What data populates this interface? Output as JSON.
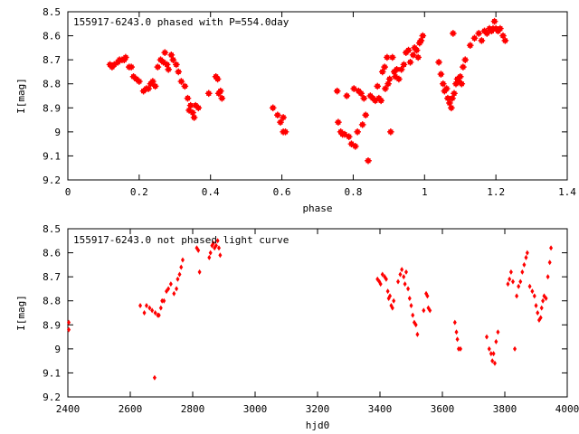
{
  "chart_data": [
    {
      "type": "scatter",
      "title": "155917-6243.0 phased with P=554.0day",
      "xlabel": "phase",
      "ylabel": "I[mag]",
      "xlim": [
        0,
        1.4
      ],
      "ylim": [
        9.2,
        8.5
      ],
      "y_inverted": true,
      "x_ticks": [
        "0",
        "0.2",
        "0.4",
        "0.6",
        "0.8",
        "1",
        "1.2",
        "1.4"
      ],
      "y_ticks": [
        "8.5",
        "8.6",
        "8.7",
        "8.8",
        "8.9",
        "9",
        "9.1",
        "9.2"
      ],
      "marker": "filled-star",
      "color": "#ff0000",
      "grid": false,
      "points": [
        [
          0.118,
          8.72
        ],
        [
          0.124,
          8.73
        ],
        [
          0.13,
          8.72
        ],
        [
          0.14,
          8.71
        ],
        [
          0.145,
          8.7
        ],
        [
          0.152,
          8.7
        ],
        [
          0.158,
          8.7
        ],
        [
          0.162,
          8.69
        ],
        [
          0.172,
          8.73
        ],
        [
          0.178,
          8.73
        ],
        [
          0.184,
          8.77
        ],
        [
          0.192,
          8.78
        ],
        [
          0.2,
          8.79
        ],
        [
          0.212,
          8.83
        ],
        [
          0.22,
          8.82
        ],
        [
          0.226,
          8.82
        ],
        [
          0.232,
          8.8
        ],
        [
          0.238,
          8.79
        ],
        [
          0.245,
          8.81
        ],
        [
          0.252,
          8.73
        ],
        [
          0.26,
          8.7
        ],
        [
          0.268,
          8.71
        ],
        [
          0.272,
          8.67
        ],
        [
          0.278,
          8.72
        ],
        [
          0.282,
          8.74
        ],
        [
          0.29,
          8.68
        ],
        [
          0.295,
          8.7
        ],
        [
          0.304,
          8.72
        ],
        [
          0.31,
          8.75
        ],
        [
          0.318,
          8.79
        ],
        [
          0.328,
          8.81
        ],
        [
          0.336,
          8.86
        ],
        [
          0.34,
          8.91
        ],
        [
          0.344,
          8.89
        ],
        [
          0.35,
          8.92
        ],
        [
          0.354,
          8.94
        ],
        [
          0.358,
          8.89
        ],
        [
          0.366,
          8.9
        ],
        [
          0.395,
          8.84
        ],
        [
          0.415,
          8.77
        ],
        [
          0.42,
          8.78
        ],
        [
          0.423,
          8.84
        ],
        [
          0.428,
          8.83
        ],
        [
          0.432,
          8.86
        ],
        [
          0.575,
          8.9
        ],
        [
          0.588,
          8.93
        ],
        [
          0.596,
          8.96
        ],
        [
          0.604,
          8.94
        ],
        [
          0.604,
          9.0
        ],
        [
          0.61,
          9.0
        ],
        [
          0.755,
          8.83
        ],
        [
          0.758,
          8.96
        ],
        [
          0.765,
          9.0
        ],
        [
          0.77,
          9.01
        ],
        [
          0.776,
          9.01
        ],
        [
          0.782,
          8.85
        ],
        [
          0.788,
          9.02
        ],
        [
          0.795,
          9.05
        ],
        [
          0.802,
          8.82
        ],
        [
          0.806,
          9.06
        ],
        [
          0.812,
          9.0
        ],
        [
          0.815,
          8.83
        ],
        [
          0.822,
          8.84
        ],
        [
          0.826,
          8.97
        ],
        [
          0.83,
          8.86
        ],
        [
          0.835,
          8.93
        ],
        [
          0.842,
          9.12
        ],
        [
          0.848,
          8.85
        ],
        [
          0.855,
          8.86
        ],
        [
          0.862,
          8.87
        ],
        [
          0.868,
          8.81
        ],
        [
          0.872,
          8.86
        ],
        [
          0.878,
          8.87
        ],
        [
          0.882,
          8.75
        ],
        [
          0.888,
          8.73
        ],
        [
          0.89,
          8.82
        ],
        [
          0.895,
          8.69
        ],
        [
          0.898,
          8.8
        ],
        [
          0.902,
          8.78
        ],
        [
          0.905,
          9.0
        ],
        [
          0.91,
          8.69
        ],
        [
          0.915,
          8.75
        ],
        [
          0.918,
          8.77
        ],
        [
          0.922,
          8.74
        ],
        [
          0.928,
          8.78
        ],
        [
          0.935,
          8.74
        ],
        [
          0.942,
          8.72
        ],
        [
          0.948,
          8.67
        ],
        [
          0.955,
          8.66
        ],
        [
          0.96,
          8.71
        ],
        [
          0.968,
          8.68
        ],
        [
          0.972,
          8.65
        ],
        [
          0.978,
          8.66
        ],
        [
          0.982,
          8.69
        ],
        [
          0.986,
          8.63
        ],
        [
          0.99,
          8.62
        ],
        [
          0.995,
          8.6
        ],
        [
          1.04,
          8.71
        ],
        [
          1.046,
          8.76
        ],
        [
          1.052,
          8.8
        ],
        [
          1.056,
          8.83
        ],
        [
          1.062,
          8.82
        ],
        [
          1.065,
          8.86
        ],
        [
          1.07,
          8.88
        ],
        [
          1.075,
          8.9
        ],
        [
          1.078,
          8.86
        ],
        [
          1.08,
          8.59
        ],
        [
          1.083,
          8.84
        ],
        [
          1.088,
          8.8
        ],
        [
          1.092,
          8.78
        ],
        [
          1.096,
          8.79
        ],
        [
          1.1,
          8.77
        ],
        [
          1.104,
          8.8
        ],
        [
          1.108,
          8.73
        ],
        [
          1.114,
          8.7
        ],
        [
          1.128,
          8.64
        ],
        [
          1.14,
          8.61
        ],
        [
          1.152,
          8.59
        ],
        [
          1.16,
          8.62
        ],
        [
          1.168,
          8.58
        ],
        [
          1.175,
          8.59
        ],
        [
          1.182,
          8.57
        ],
        [
          1.188,
          8.58
        ],
        [
          1.192,
          8.57
        ],
        [
          1.196,
          8.54
        ],
        [
          1.2,
          8.57
        ],
        [
          1.206,
          8.58
        ],
        [
          1.212,
          8.57
        ],
        [
          1.22,
          8.6
        ],
        [
          1.226,
          8.62
        ]
      ]
    },
    {
      "type": "scatter",
      "title": "155917-6243.0 not phased light curve",
      "xlabel": "hjd0",
      "ylabel": "I[mag]",
      "xlim": [
        2400,
        4000
      ],
      "ylim": [
        9.2,
        8.5
      ],
      "y_inverted": true,
      "x_ticks": [
        "2400",
        "2600",
        "2800",
        "3000",
        "3200",
        "3400",
        "3600",
        "3800",
        "4000"
      ],
      "y_ticks": [
        "8.5",
        "8.6",
        "8.7",
        "8.8",
        "8.9",
        "9",
        "9.1",
        "9.2"
      ],
      "marker": "filled-diamond",
      "color": "#ff0000",
      "grid": false,
      "points": [
        [
          2403,
          8.89
        ],
        [
          2403,
          8.92
        ],
        [
          2632,
          8.82
        ],
        [
          2645,
          8.85
        ],
        [
          2652,
          8.82
        ],
        [
          2662,
          8.83
        ],
        [
          2670,
          8.84
        ],
        [
          2678,
          9.12
        ],
        [
          2680,
          8.85
        ],
        [
          2688,
          8.86
        ],
        [
          2692,
          8.86
        ],
        [
          2698,
          8.83
        ],
        [
          2702,
          8.8
        ],
        [
          2708,
          8.8
        ],
        [
          2716,
          8.76
        ],
        [
          2722,
          8.75
        ],
        [
          2730,
          8.73
        ],
        [
          2740,
          8.77
        ],
        [
          2748,
          8.75
        ],
        [
          2752,
          8.71
        ],
        [
          2758,
          8.69
        ],
        [
          2763,
          8.66
        ],
        [
          2768,
          8.63
        ],
        [
          2813,
          8.58
        ],
        [
          2818,
          8.59
        ],
        [
          2822,
          8.68
        ],
        [
          2853,
          8.62
        ],
        [
          2857,
          8.6
        ],
        [
          2862,
          8.57
        ],
        [
          2866,
          8.56
        ],
        [
          2870,
          8.58
        ],
        [
          2875,
          8.57
        ],
        [
          2880,
          8.55
        ],
        [
          2884,
          8.58
        ],
        [
          2888,
          8.61
        ],
        [
          3392,
          8.71
        ],
        [
          3398,
          8.72
        ],
        [
          3402,
          8.73
        ],
        [
          3408,
          8.69
        ],
        [
          3415,
          8.7
        ],
        [
          3420,
          8.71
        ],
        [
          3425,
          8.76
        ],
        [
          3428,
          8.79
        ],
        [
          3432,
          8.78
        ],
        [
          3436,
          8.82
        ],
        [
          3440,
          8.83
        ],
        [
          3444,
          8.8
        ],
        [
          3458,
          8.72
        ],
        [
          3465,
          8.69
        ],
        [
          3470,
          8.67
        ],
        [
          3476,
          8.7
        ],
        [
          3480,
          8.73
        ],
        [
          3484,
          8.68
        ],
        [
          3490,
          8.75
        ],
        [
          3495,
          8.79
        ],
        [
          3500,
          8.82
        ],
        [
          3505,
          8.86
        ],
        [
          3510,
          8.89
        ],
        [
          3515,
          8.9
        ],
        [
          3520,
          8.94
        ],
        [
          3540,
          8.84
        ],
        [
          3548,
          8.77
        ],
        [
          3552,
          8.78
        ],
        [
          3555,
          8.83
        ],
        [
          3560,
          8.84
        ],
        [
          3640,
          8.89
        ],
        [
          3645,
          8.93
        ],
        [
          3648,
          8.96
        ],
        [
          3652,
          9.0
        ],
        [
          3658,
          9.0
        ],
        [
          3742,
          8.95
        ],
        [
          3750,
          9.0
        ],
        [
          3756,
          9.02
        ],
        [
          3760,
          9.05
        ],
        [
          3764,
          9.02
        ],
        [
          3768,
          9.06
        ],
        [
          3772,
          8.97
        ],
        [
          3778,
          8.93
        ],
        [
          3810,
          8.73
        ],
        [
          3815,
          8.71
        ],
        [
          3820,
          8.68
        ],
        [
          3826,
          8.72
        ],
        [
          3832,
          9.0
        ],
        [
          3838,
          8.78
        ],
        [
          3844,
          8.74
        ],
        [
          3850,
          8.72
        ],
        [
          3856,
          8.68
        ],
        [
          3862,
          8.65
        ],
        [
          3868,
          8.62
        ],
        [
          3872,
          8.6
        ],
        [
          3880,
          8.74
        ],
        [
          3888,
          8.76
        ],
        [
          3895,
          8.78
        ],
        [
          3900,
          8.82
        ],
        [
          3905,
          8.85
        ],
        [
          3910,
          8.88
        ],
        [
          3915,
          8.87
        ],
        [
          3918,
          8.83
        ],
        [
          3922,
          8.8
        ],
        [
          3926,
          8.78
        ],
        [
          3932,
          8.79
        ],
        [
          3938,
          8.7
        ],
        [
          3944,
          8.64
        ],
        [
          3948,
          8.58
        ]
      ]
    }
  ]
}
